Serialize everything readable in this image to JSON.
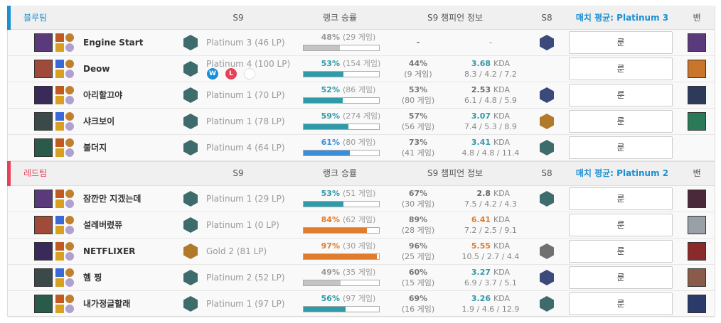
{
  "kda_unit": "KDA",
  "rune_button": "룬",
  "teams": [
    {
      "header": {
        "team": "블루팀",
        "tier": "S9",
        "winrate": "랭크 승률",
        "champ": "S9 챔피언 정보",
        "s8": "S8",
        "avg": "매치 평균: Platinum 3",
        "ban": "밴"
      },
      "players": [
        {
          "name": "Engine Start",
          "rank": "Platinum 3 (46 LP)",
          "winrate": {
            "value": 48,
            "label": "48%"
          },
          "games": "(29 게임)",
          "bar_color": "#c4c4c4",
          "champ_winrate": "-",
          "kda": "-"
        },
        {
          "name": "Deow",
          "rank": "Platinum 4 (100 LP)",
          "recent": [
            "W",
            "L"
          ],
          "winrate": {
            "value": 53,
            "label": "53%"
          },
          "games": "(154 게임)",
          "bar_color": "#2f9aa8",
          "champ_winrate": "44%",
          "champ_games": "(9 게임)",
          "kda": "3.68",
          "kda_color": "#2f9aa8",
          "kda_detail": "8.3 / 4.2 / 7.2"
        },
        {
          "name": "아리할끄야",
          "rank": "Platinum 1 (70 LP)",
          "winrate": {
            "value": 52,
            "label": "52%"
          },
          "games": "(86 게임)",
          "bar_color": "#2f9aa8",
          "champ_winrate": "53%",
          "champ_games": "(80 게임)",
          "kda": "2.53",
          "kda_color": "#666",
          "kda_detail": "6.1 / 4.8 / 5.9"
        },
        {
          "name": "샤크보이",
          "rank": "Platinum 1 (78 LP)",
          "winrate": {
            "value": 59,
            "label": "59%"
          },
          "games": "(274 게임)",
          "bar_color": "#2f9aa8",
          "champ_winrate": "57%",
          "champ_games": "(56 게임)",
          "kda": "3.07",
          "kda_color": "#2f9aa8",
          "kda_detail": "7.4 / 5.3 / 8.9"
        },
        {
          "name": "불더지",
          "rank": "Platinum 4 (64 LP)",
          "winrate": {
            "value": 61,
            "label": "61%"
          },
          "games": "(80 게임)",
          "bar_color": "#3b8fd9",
          "champ_winrate": "73%",
          "champ_games": "(41 게임)",
          "kda": "3.41",
          "kda_color": "#2f9aa8",
          "kda_detail": "4.8 / 4.8 / 11.4"
        }
      ]
    },
    {
      "header": {
        "team": "레드팀",
        "tier": "S9",
        "winrate": "랭크 승률",
        "champ": "S9 챔피언 정보",
        "s8": "S8",
        "avg": "매치 평균: Platinum 2",
        "ban": "밴"
      },
      "players": [
        {
          "name": "잠깐만 지겠는데",
          "rank": "Platinum 1 (29 LP)",
          "winrate": {
            "value": 53,
            "label": "53%"
          },
          "games": "(51 게임)",
          "bar_color": "#2f9aa8",
          "champ_winrate": "67%",
          "champ_games": "(30 게임)",
          "kda": "2.8",
          "kda_color": "#666",
          "kda_detail": "7.5 / 4.2 / 4.3"
        },
        {
          "name": "설레버렸쮸",
          "rank": "Platinum 1 (0 LP)",
          "winrate": {
            "value": 84,
            "label": "84%"
          },
          "games": "(62 게임)",
          "bar_color": "#e07c2b",
          "champ_winrate": "89%",
          "champ_games": "(28 게임)",
          "kda": "6.41",
          "kda_color": "#e07c2b",
          "kda_detail": "7.2 / 2.5 / 9.1"
        },
        {
          "name": "NETFLIXER",
          "rank": "Gold 2 (81 LP)",
          "winrate": {
            "value": 97,
            "label": "97%"
          },
          "games": "(30 게임)",
          "bar_color": "#e07c2b",
          "champ_winrate": "96%",
          "champ_games": "(25 게임)",
          "kda": "5.55",
          "kda_color": "#e07c2b",
          "kda_detail": "10.5 / 2.7 / 4.4"
        },
        {
          "name": "헴 찡",
          "rank": "Platinum 2 (52 LP)",
          "winrate": {
            "value": 49,
            "label": "49%"
          },
          "games": "(35 게임)",
          "bar_color": "#c4c4c4",
          "champ_winrate": "60%",
          "champ_games": "(15 게임)",
          "kda": "3.27",
          "kda_color": "#2f9aa8",
          "kda_detail": "6.9 / 3.7 / 5.1"
        },
        {
          "name": "내가정글할래",
          "rank": "Platinum 1 (97 LP)",
          "winrate": {
            "value": 56,
            "label": "56%"
          },
          "games": "(97 게임)",
          "bar_color": "#2f9aa8",
          "champ_winrate": "69%",
          "champ_games": "(16 게임)",
          "kda": "3.26",
          "kda_color": "#2f9aa8",
          "kda_detail": "1.9 / 4.6 / 12.9"
        }
      ]
    }
  ]
}
